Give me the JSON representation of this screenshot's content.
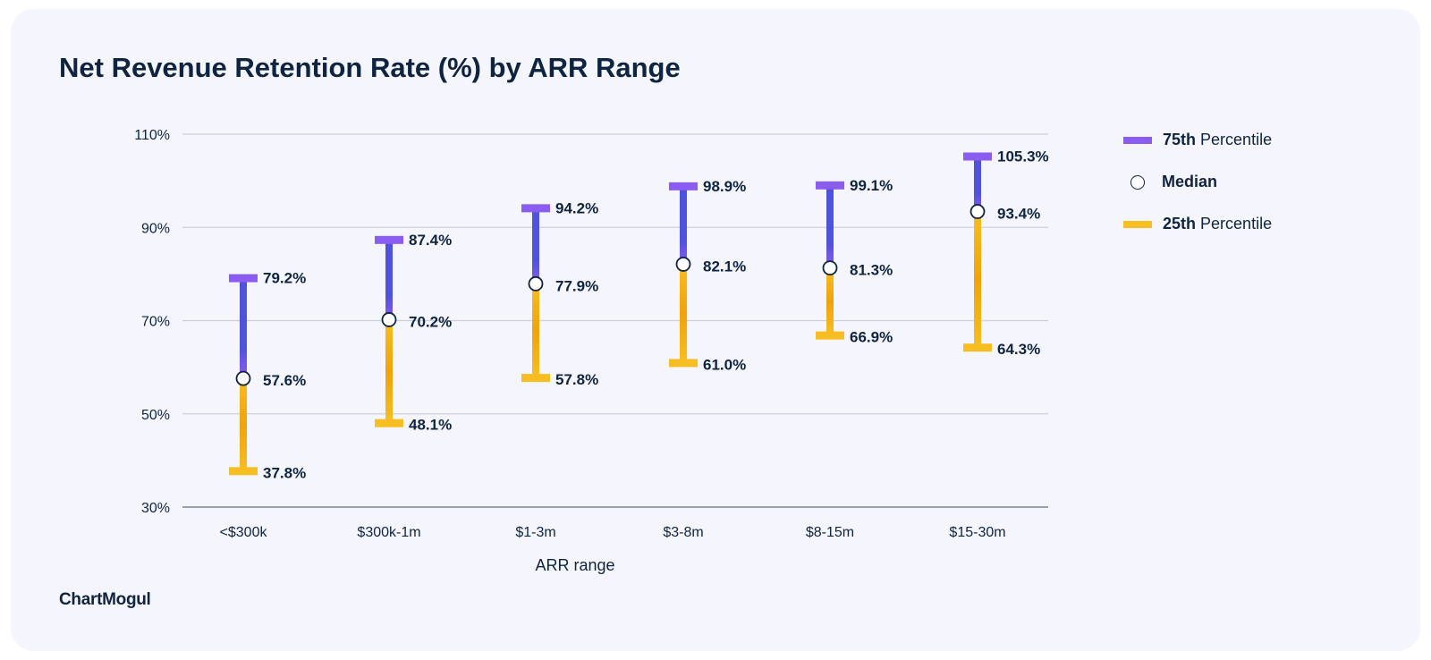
{
  "title": "Net Revenue Retention Rate (%) by ARR Range",
  "logo": "ChartMogul",
  "legend": {
    "p75_bold": "75th",
    "p75_rest": "Percentile",
    "median": "Median",
    "p25_bold": "25th",
    "p25_rest": "Percentile"
  },
  "colors": {
    "p75_top": "#8b5cf0",
    "p75_mid": "#4f52dd",
    "p25": "#f6be22",
    "p25_dark": "#f0a30c",
    "text": "#0e2440",
    "grid": "#cdd0d9",
    "card": "#f5f6fd"
  },
  "chart_data": {
    "type": "range",
    "title": "Net Revenue Retention Rate (%) by ARR Range",
    "xlabel": "ARR range",
    "ylabel": "",
    "ylim": [
      30,
      110
    ],
    "yticks": [
      30,
      50,
      70,
      90,
      110
    ],
    "ytick_labels": [
      "30%",
      "50%",
      "70%",
      "90%",
      "110%"
    ],
    "grid": true,
    "legend_position": "right",
    "categories": [
      "<$300k",
      "$300k-1m",
      "$1-3m",
      "$3-8m",
      "$8-15m",
      "$15-30m"
    ],
    "series": [
      {
        "name": "75th Percentile",
        "values": [
          79.2,
          87.4,
          94.2,
          98.9,
          99.1,
          105.3
        ],
        "labels": [
          "79.2%",
          "87.4%",
          "94.2%",
          "98.9%",
          "99.1%",
          "105.3%"
        ]
      },
      {
        "name": "Median",
        "values": [
          57.6,
          70.2,
          77.9,
          82.1,
          81.3,
          93.4
        ],
        "labels": [
          "57.6%",
          "70.2%",
          "77.9%",
          "82.1%",
          "81.3%",
          "93.4%"
        ]
      },
      {
        "name": "25th Percentile",
        "values": [
          37.8,
          48.1,
          57.8,
          61.0,
          66.9,
          64.3
        ],
        "labels": [
          "37.8%",
          "48.1%",
          "57.8%",
          "61.0%",
          "66.9%",
          "64.3%"
        ]
      }
    ]
  }
}
